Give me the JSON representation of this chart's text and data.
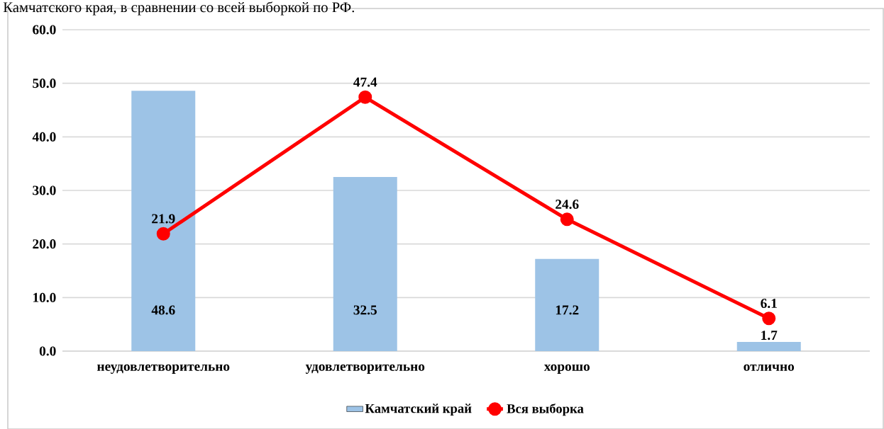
{
  "chart_data": {
    "type": "bar",
    "annotations": [
      "Камчатского края, в сравнении со всей выборкой по РФ."
    ],
    "categories": [
      "неудовлетворительно",
      "удовлетворительно",
      "хорошо",
      "отлично"
    ],
    "series": [
      {
        "name": "Камчатский край",
        "color": "#9dc3e6",
        "values": [
          48.6,
          32.5,
          17.2,
          1.7
        ]
      },
      {
        "name": "Вся выборка",
        "type": "line",
        "color": "#ff0000",
        "marker": "circle",
        "values": [
          21.9,
          47.4,
          24.6,
          6.1
        ]
      }
    ],
    "ylim": [
      0,
      60
    ],
    "yticks": [
      {
        "value": 0,
        "label": "0.0"
      },
      {
        "value": 10,
        "label": "10.0"
      },
      {
        "value": 20,
        "label": "20.0"
      },
      {
        "value": 30,
        "label": "30.0"
      },
      {
        "value": 40,
        "label": "40.0"
      },
      {
        "value": 50,
        "label": "50.0"
      },
      {
        "value": 60,
        "label": "60.0"
      }
    ],
    "grid": "y",
    "legend": "bottom",
    "data_labels": true
  }
}
